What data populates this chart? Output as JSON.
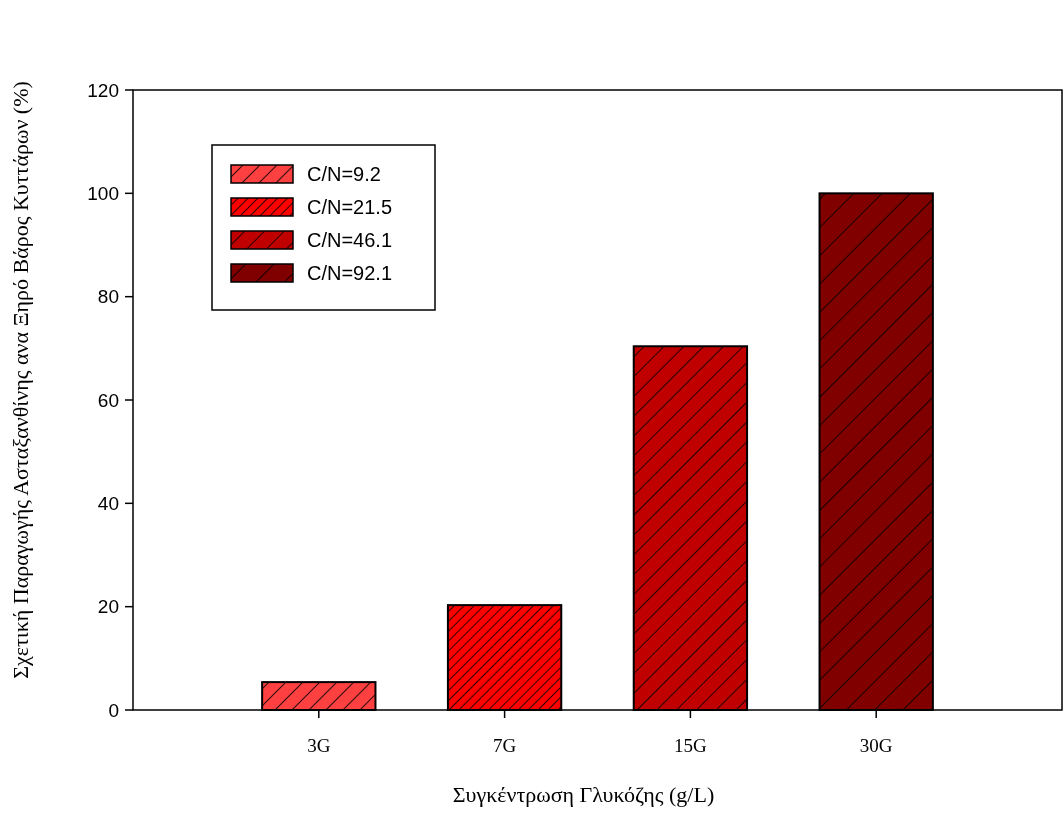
{
  "chart_data": {
    "type": "bar",
    "xlabel": "Συγκέντρωση Γλυκόζης (g/L)",
    "ylabel": "Σχετική Παραγωγής Ασταξανθίνης ανα Ξηρό Βάρος Κυττάρων (%)",
    "categories": [
      "3G",
      "7G",
      "15G",
      "30G"
    ],
    "series": [
      {
        "name": "C/N=9.2",
        "color": "#ff4040",
        "values": [
          5.4,
          null,
          null,
          null
        ]
      },
      {
        "name": "C/N=21.5",
        "color": "#ff0000",
        "values": [
          null,
          20.3,
          null,
          null
        ]
      },
      {
        "name": "C/N=46.1",
        "color": "#c00000",
        "values": [
          null,
          null,
          70.4,
          null
        ]
      },
      {
        "name": "C/N=92.1",
        "color": "#800000",
        "values": [
          null,
          null,
          null,
          100
        ]
      }
    ],
    "ylim": [
      0,
      120
    ],
    "yticks": [
      0,
      20,
      40,
      60,
      80,
      100,
      120
    ],
    "legend": "top left",
    "grid": false
  }
}
